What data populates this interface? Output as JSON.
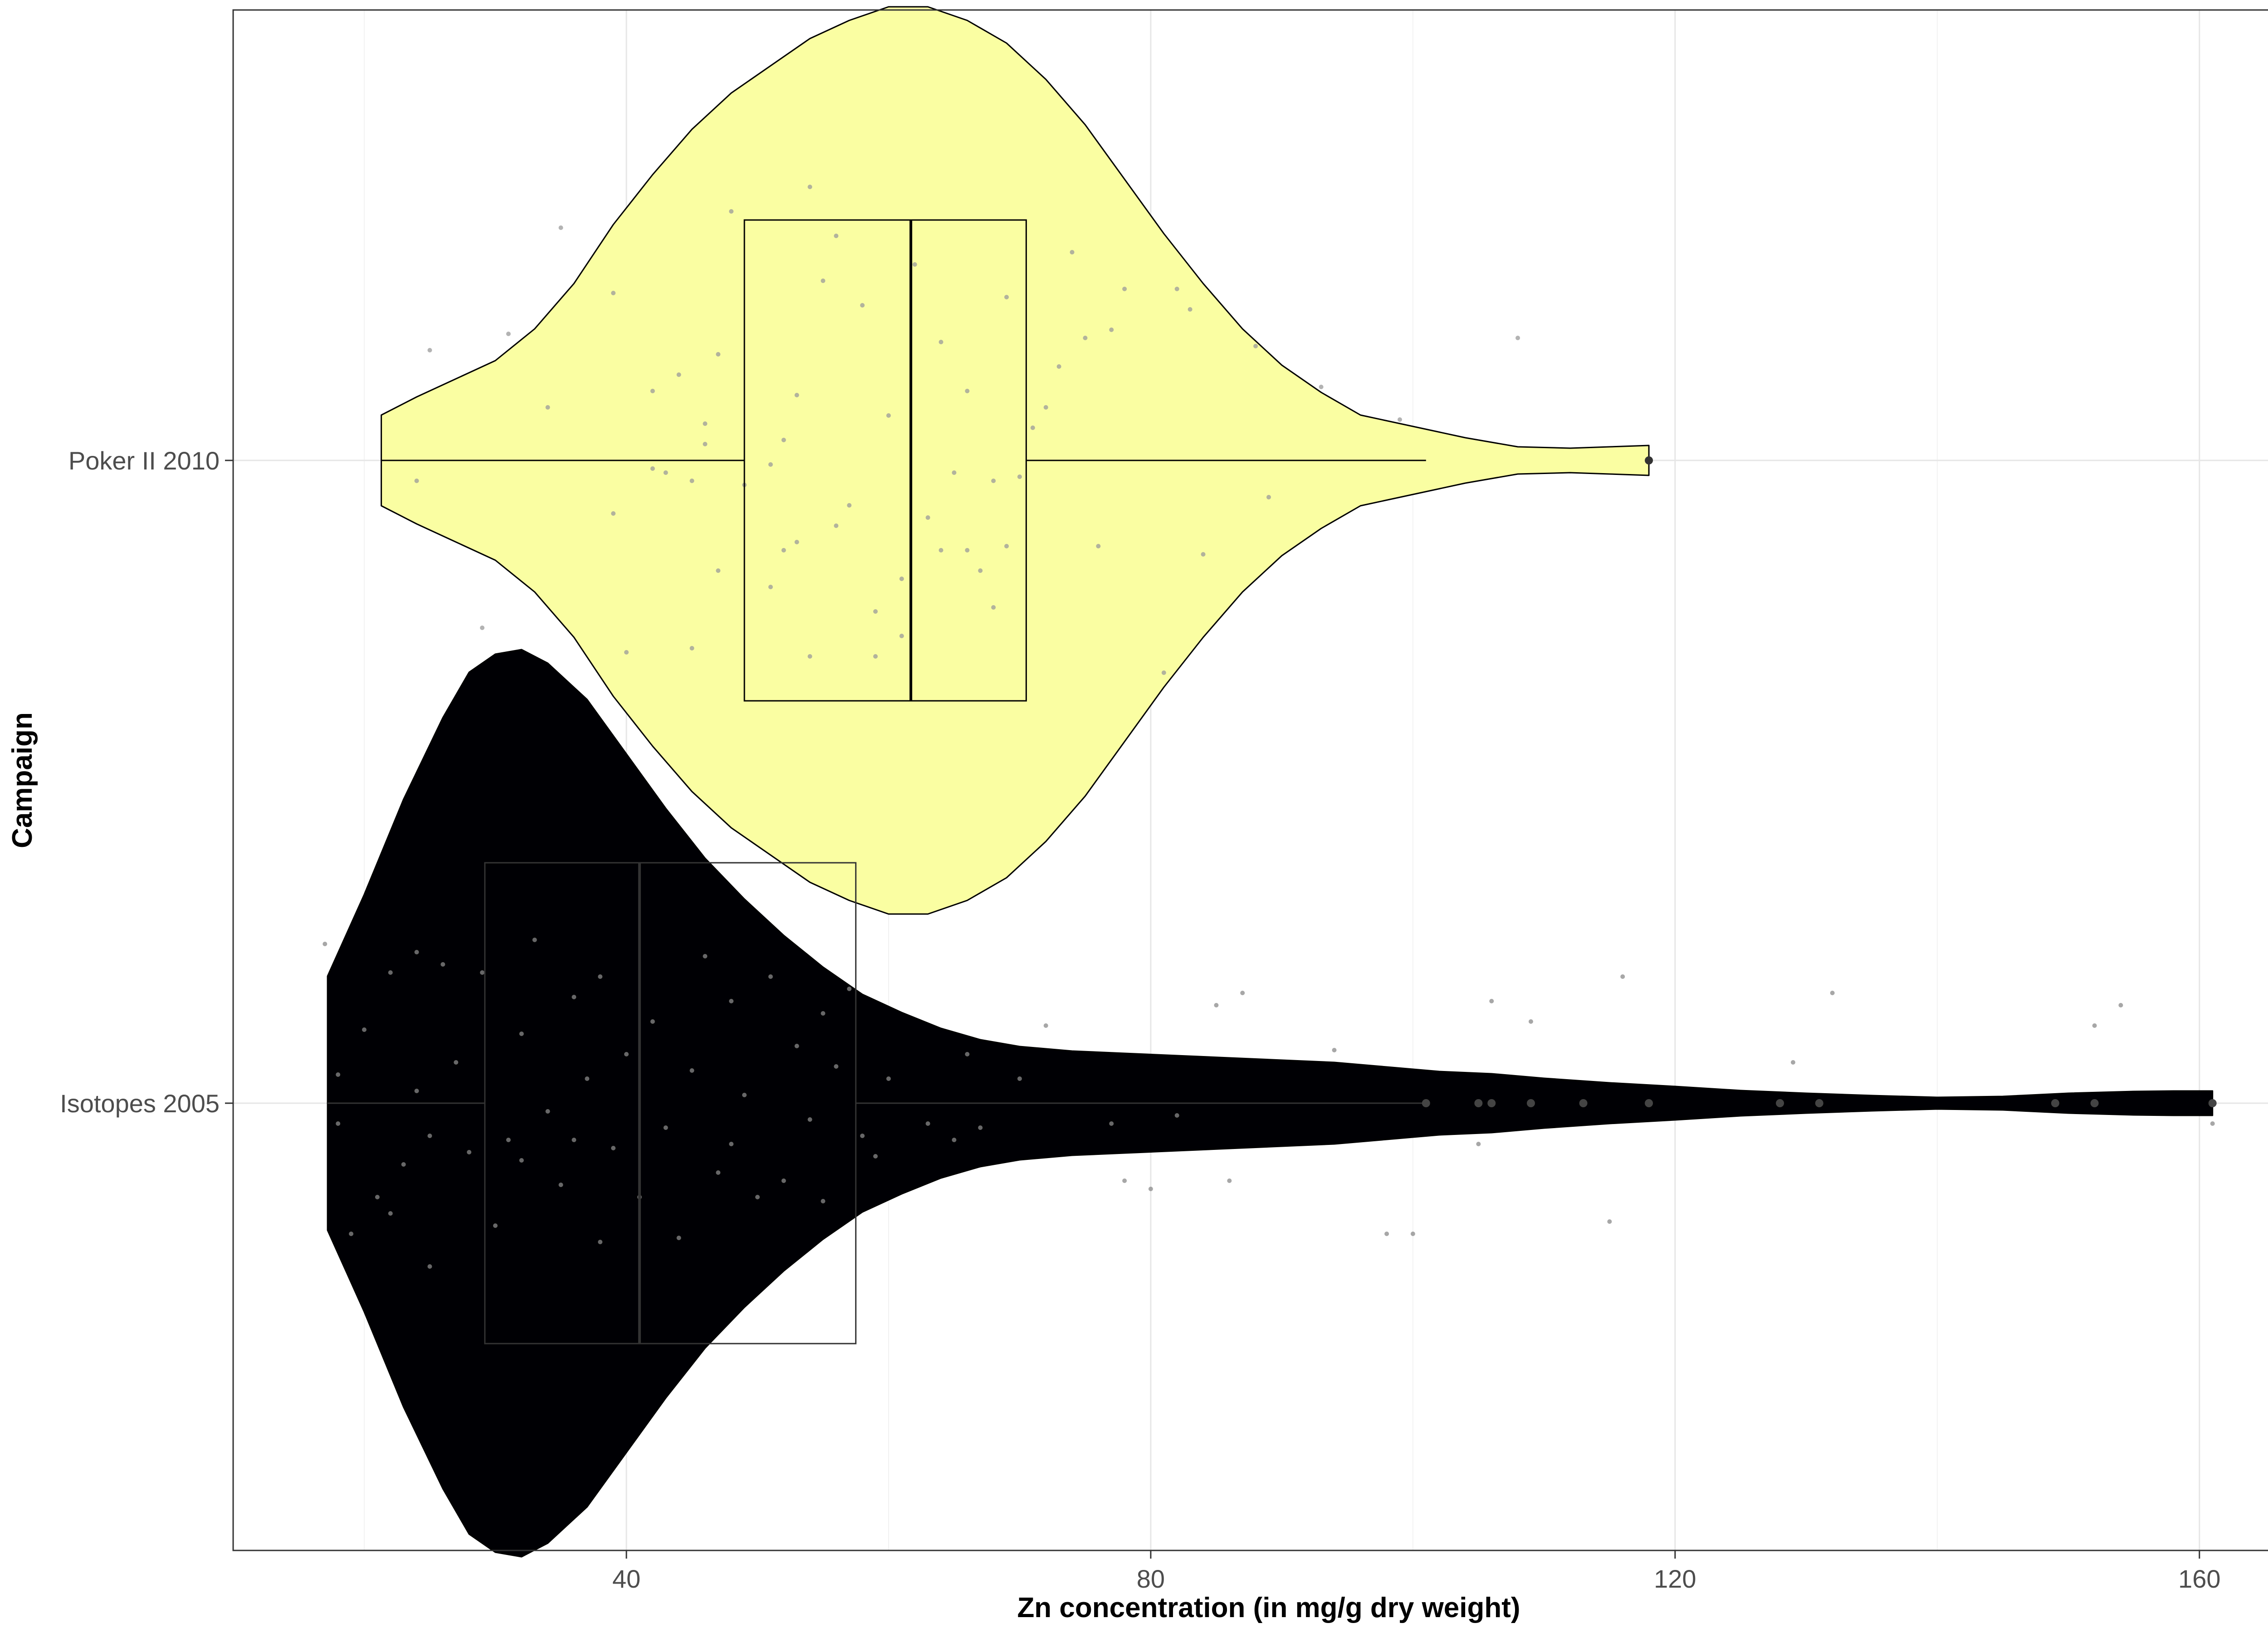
{
  "chart_data": {
    "type": "violin",
    "title": "",
    "xlabel": "Zn concentration (in mg/g dry weight)",
    "ylabel": "Campaign",
    "xlim": [
      10,
      168
    ],
    "x_ticks": [
      40,
      80,
      120,
      160
    ],
    "x_tick_labels": [
      "40",
      "80",
      "120",
      "160"
    ],
    "orientation": "horizontal",
    "grid": true,
    "categories": [
      "Poker II 2010",
      "Isotopes 2005"
    ],
    "series": [
      {
        "campaign": "Poker II 2010",
        "fill": "#fafea2",
        "box_color": "#000000",
        "box": {
          "whisker_low": 21.3,
          "q1": 49,
          "median": 61.7,
          "q3": 70.5,
          "whisker_high": 101,
          "outliers": [
            118
          ]
        },
        "density": [
          [
            21.3,
            0.1
          ],
          [
            24,
            0.14
          ],
          [
            27,
            0.18
          ],
          [
            30,
            0.22
          ],
          [
            33,
            0.29
          ],
          [
            36,
            0.39
          ],
          [
            39,
            0.52
          ],
          [
            42,
            0.63
          ],
          [
            45,
            0.73
          ],
          [
            48,
            0.81
          ],
          [
            51,
            0.87
          ],
          [
            54,
            0.93
          ],
          [
            57,
            0.97
          ],
          [
            60,
            1.0
          ],
          [
            63,
            1.0
          ],
          [
            66,
            0.97
          ],
          [
            69,
            0.92
          ],
          [
            72,
            0.84
          ],
          [
            75,
            0.74
          ],
          [
            78,
            0.62
          ],
          [
            81,
            0.5
          ],
          [
            84,
            0.39
          ],
          [
            87,
            0.29
          ],
          [
            90,
            0.21
          ],
          [
            93,
            0.15
          ],
          [
            96,
            0.1
          ],
          [
            100,
            0.075
          ],
          [
            104,
            0.05
          ],
          [
            108,
            0.03
          ],
          [
            112,
            0.027
          ],
          [
            115,
            0.03
          ],
          [
            118,
            0.033
          ]
        ],
        "jitter": [
          [
            24,
            0.05
          ],
          [
            25,
            -0.27
          ],
          [
            29,
            0.41
          ],
          [
            31,
            -0.31
          ],
          [
            34,
            -0.13
          ],
          [
            35,
            -0.57
          ],
          [
            39,
            0.13
          ],
          [
            39,
            -0.41
          ],
          [
            40,
            0.47
          ],
          [
            42,
            -0.17
          ],
          [
            42,
            0.02
          ],
          [
            43,
            0.03
          ],
          [
            44,
            -0.21
          ],
          [
            45,
            0.05
          ],
          [
            45,
            0.46
          ],
          [
            46,
            -0.04
          ],
          [
            46,
            -0.09
          ],
          [
            47,
            -0.26
          ],
          [
            47,
            0.27
          ],
          [
            48,
            -0.61
          ],
          [
            49,
            0.06
          ],
          [
            51,
            0.01
          ],
          [
            51,
            0.31
          ],
          [
            52,
            -0.05
          ],
          [
            52,
            0.22
          ],
          [
            53,
            -0.16
          ],
          [
            53,
            0.2
          ],
          [
            54,
            -0.67
          ],
          [
            54,
            0.48
          ],
          [
            55,
            -0.44
          ],
          [
            56,
            0.16
          ],
          [
            56,
            -0.55
          ],
          [
            57,
            0.11
          ],
          [
            58,
            -0.38
          ],
          [
            59,
            0.48
          ],
          [
            59,
            0.37
          ],
          [
            60,
            -0.11
          ],
          [
            61,
            0.43
          ],
          [
            61,
            0.29
          ],
          [
            62,
            -0.48
          ],
          [
            63,
            0.14
          ],
          [
            64,
            -0.29
          ],
          [
            64,
            0.22
          ],
          [
            65,
            0.03
          ],
          [
            66,
            -0.17
          ],
          [
            66,
            0.22
          ],
          [
            67,
            0.27
          ],
          [
            68,
            0.05
          ],
          [
            68,
            0.36
          ],
          [
            69,
            -0.4
          ],
          [
            69,
            0.21
          ],
          [
            70,
            0.04
          ],
          [
            71,
            -0.08
          ],
          [
            72,
            -0.13
          ],
          [
            73,
            -0.23
          ],
          [
            74,
            -0.51
          ],
          [
            75,
            -0.3
          ],
          [
            76,
            0.21
          ],
          [
            77,
            -0.32
          ],
          [
            78,
            -0.42
          ],
          [
            81,
            0.52
          ],
          [
            82,
            -0.42
          ],
          [
            83,
            -0.37
          ],
          [
            84,
            0.23
          ],
          [
            88,
            -0.28
          ],
          [
            89,
            0.09
          ],
          [
            93,
            -0.18
          ],
          [
            99,
            -0.1
          ],
          [
            108,
            -0.3
          ]
        ]
      },
      {
        "campaign": "Isotopes 2005",
        "fill": "#000004",
        "box_color": "#333333",
        "box": {
          "whisker_low": 17.2,
          "q1": 29.2,
          "median": 41,
          "q3": 57.5,
          "whisker_high": 101,
          "outliers": [
            101,
            105,
            106,
            109,
            113,
            118,
            128,
            131,
            149,
            152,
            161
          ]
        },
        "density": [
          [
            17.2,
            0.28
          ],
          [
            20,
            0.46
          ],
          [
            23,
            0.67
          ],
          [
            26,
            0.85
          ],
          [
            28,
            0.95
          ],
          [
            30,
            0.99
          ],
          [
            32,
            1.0
          ],
          [
            34,
            0.97
          ],
          [
            37,
            0.89
          ],
          [
            40,
            0.77
          ],
          [
            43,
            0.65
          ],
          [
            46,
            0.54
          ],
          [
            49,
            0.45
          ],
          [
            52,
            0.37
          ],
          [
            55,
            0.3
          ],
          [
            58,
            0.24
          ],
          [
            61,
            0.2
          ],
          [
            64,
            0.165
          ],
          [
            67,
            0.14
          ],
          [
            70,
            0.125
          ],
          [
            74,
            0.115
          ],
          [
            78,
            0.11
          ],
          [
            82,
            0.105
          ],
          [
            86,
            0.1
          ],
          [
            90,
            0.095
          ],
          [
            94,
            0.09
          ],
          [
            98,
            0.08
          ],
          [
            102,
            0.07
          ],
          [
            106,
            0.065
          ],
          [
            110,
            0.055
          ],
          [
            115,
            0.045
          ],
          [
            120,
            0.037
          ],
          [
            125,
            0.028
          ],
          [
            130,
            0.022
          ],
          [
            135,
            0.017
          ],
          [
            140,
            0.013
          ],
          [
            145,
            0.015
          ],
          [
            150,
            0.022
          ],
          [
            155,
            0.026
          ],
          [
            158,
            0.027
          ],
          [
            161,
            0.027
          ]
        ],
        "jitter": [
          [
            17,
            -0.39
          ],
          [
            18,
            0.05
          ],
          [
            18,
            -0.07
          ],
          [
            19,
            0.32
          ],
          [
            20,
            -0.18
          ],
          [
            21,
            0.23
          ],
          [
            22,
            0.27
          ],
          [
            22,
            -0.32
          ],
          [
            23,
            0.15
          ],
          [
            24,
            -0.03
          ],
          [
            24,
            -0.37
          ],
          [
            25,
            0.08
          ],
          [
            25,
            0.4
          ],
          [
            26,
            -0.34
          ],
          [
            27,
            -0.1
          ],
          [
            28,
            0.12
          ],
          [
            29,
            -0.32
          ],
          [
            30,
            0.3
          ],
          [
            31,
            0.09
          ],
          [
            32,
            -0.17
          ],
          [
            32,
            0.14
          ],
          [
            33,
            -0.4
          ],
          [
            34,
            0.02
          ],
          [
            35,
            0.2
          ],
          [
            36,
            -0.26
          ],
          [
            36,
            0.09
          ],
          [
            37,
            -0.06
          ],
          [
            38,
            0.34
          ],
          [
            38,
            -0.31
          ],
          [
            39,
            0.11
          ],
          [
            40,
            -0.12
          ],
          [
            41,
            0.23
          ],
          [
            42,
            -0.2
          ],
          [
            43,
            0.06
          ],
          [
            44,
            0.33
          ],
          [
            45,
            -0.08
          ],
          [
            46,
            -0.36
          ],
          [
            47,
            0.17
          ],
          [
            48,
            -0.25
          ],
          [
            48,
            0.1
          ],
          [
            49,
            -0.02
          ],
          [
            50,
            0.23
          ],
          [
            51,
            -0.31
          ],
          [
            52,
            0.19
          ],
          [
            53,
            -0.14
          ],
          [
            54,
            0.04
          ],
          [
            55,
            0.24
          ],
          [
            55,
            -0.22
          ],
          [
            56,
            -0.09
          ],
          [
            57,
            -0.28
          ],
          [
            58,
            0.08
          ],
          [
            59,
            0.13
          ],
          [
            60,
            -0.06
          ],
          [
            63,
            0.05
          ],
          [
            65,
            0.09
          ],
          [
            66,
            -0.12
          ],
          [
            67,
            0.06
          ],
          [
            70,
            -0.06
          ],
          [
            72,
            -0.19
          ],
          [
            77,
            0.05
          ],
          [
            78,
            0.19
          ],
          [
            80,
            0.21
          ],
          [
            82,
            0.03
          ],
          [
            85,
            -0.24
          ],
          [
            86,
            0.19
          ],
          [
            87,
            -0.27
          ],
          [
            94,
            -0.13
          ],
          [
            98,
            0.32
          ],
          [
            100,
            0.32
          ],
          [
            105,
            0.1
          ],
          [
            106,
            -0.25
          ],
          [
            109,
            -0.2
          ],
          [
            115,
            0.29
          ],
          [
            116,
            -0.31
          ],
          [
            129,
            -0.1
          ],
          [
            132,
            -0.27
          ],
          [
            152,
            -0.19
          ],
          [
            154,
            -0.24
          ],
          [
            161,
            0.05
          ]
        ]
      }
    ]
  }
}
